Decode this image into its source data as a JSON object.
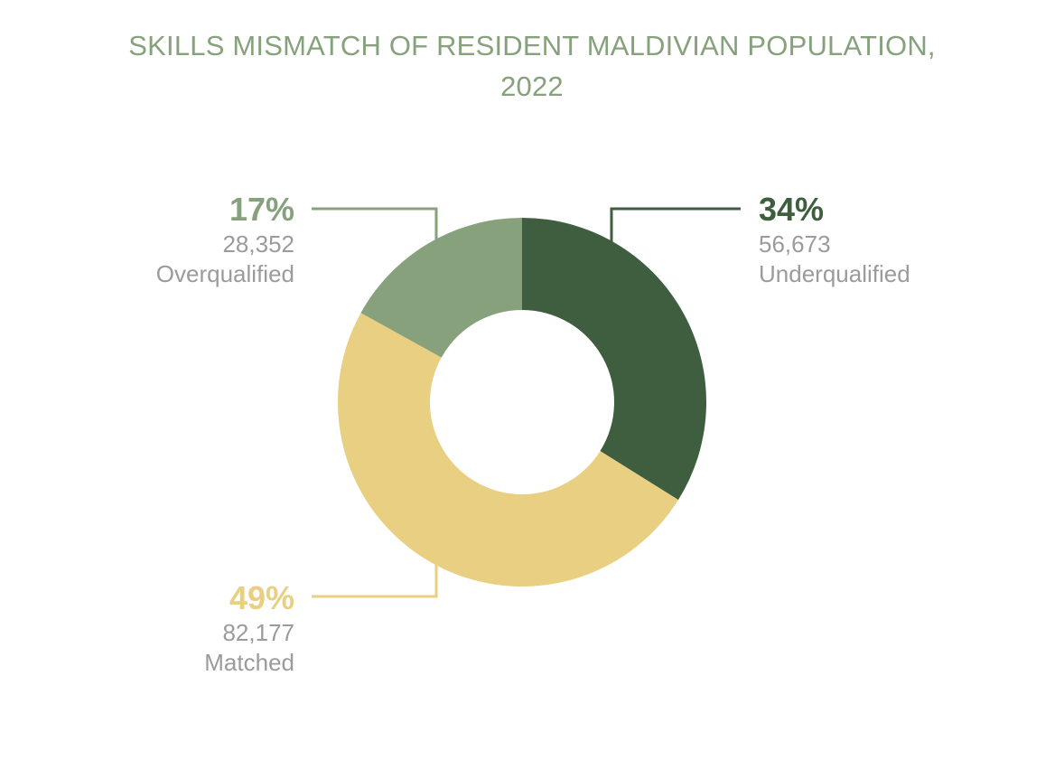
{
  "title_line1": "SKILLS MISMATCH OF RESIDENT MALDIVIAN POPULATION,",
  "title_line2": "2022",
  "chart_data": {
    "type": "pie",
    "donut": true,
    "title": "SKILLS MISMATCH OF RESIDENT MALDIVIAN POPULATION, 2022",
    "slices": [
      {
        "name": "Underqualified",
        "percent": "34%",
        "count": "56,673",
        "value": 56673,
        "color": "#3e5e3f"
      },
      {
        "name": "Matched",
        "percent": "49%",
        "count": "82,177",
        "value": 82177,
        "color": "#e9cf82"
      },
      {
        "name": "Overqualified",
        "percent": "17%",
        "count": "28,352",
        "value": 28352,
        "color": "#86a17c"
      }
    ],
    "legend": "none"
  }
}
